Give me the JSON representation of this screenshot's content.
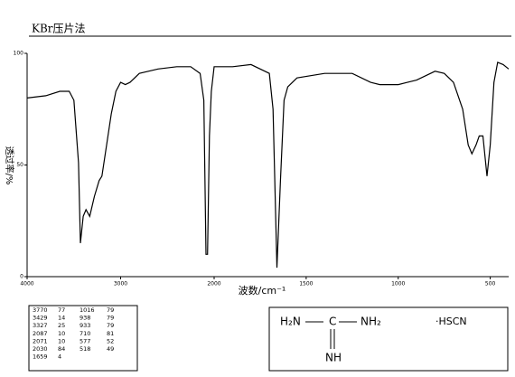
{
  "header": {
    "title": "KBr压片法"
  },
  "chart_data": {
    "type": "line",
    "x_label": "波数/cm⁻¹",
    "y_label": "透过率/%",
    "xlim": [
      4000,
      400
    ],
    "xscale_break": 2000,
    "ylim": [
      0,
      100
    ],
    "xticks": [
      4000,
      3000,
      2000,
      1500,
      1000,
      500
    ],
    "yticks": [
      0,
      50,
      100
    ],
    "color": "#000000",
    "x": [
      4000,
      3800,
      3650,
      3550,
      3500,
      3450,
      3430,
      3400,
      3370,
      3330,
      3280,
      3230,
      3200,
      3150,
      3100,
      3050,
      3000,
      2950,
      2900,
      2800,
      2600,
      2400,
      2250,
      2150,
      2110,
      2087,
      2071,
      2050,
      2030,
      2000,
      1900,
      1800,
      1700,
      1680,
      1659,
      1640,
      1620,
      1600,
      1550,
      1400,
      1250,
      1150,
      1100,
      1000,
      950,
      900,
      800,
      750,
      700,
      650,
      620,
      600,
      577,
      560,
      540,
      518,
      500,
      480,
      460,
      430,
      400
    ],
    "values": [
      80,
      81,
      83,
      83,
      79,
      51,
      15,
      27,
      30,
      27,
      36,
      43,
      45,
      59,
      73,
      83,
      87,
      86,
      87,
      91,
      93,
      94,
      94,
      91,
      79,
      10,
      10,
      63,
      83,
      94,
      94,
      95,
      91,
      75,
      4,
      43,
      79,
      85,
      89,
      91,
      91,
      87,
      86,
      86,
      87,
      88,
      92,
      91,
      87,
      75,
      59,
      55,
      59,
      63,
      63,
      45,
      59,
      87,
      96,
      95,
      93
    ]
  },
  "peak_table": {
    "rows": [
      [
        "3770",
        "77",
        "1016",
        "79"
      ],
      [
        "3429",
        "14",
        "938",
        "79"
      ],
      [
        "3327",
        "25",
        "933",
        "79"
      ],
      [
        "2087",
        "10",
        "710",
        "81"
      ],
      [
        "2071",
        "10",
        "577",
        "52"
      ],
      [
        "2030",
        "84",
        "518",
        "49"
      ],
      [
        "1659",
        "4",
        "",
        ""
      ]
    ]
  },
  "structure": {
    "left": "H₂N",
    "center": "C",
    "right": "NH₂",
    "bottom": "NH",
    "salt": "·HSCN"
  }
}
